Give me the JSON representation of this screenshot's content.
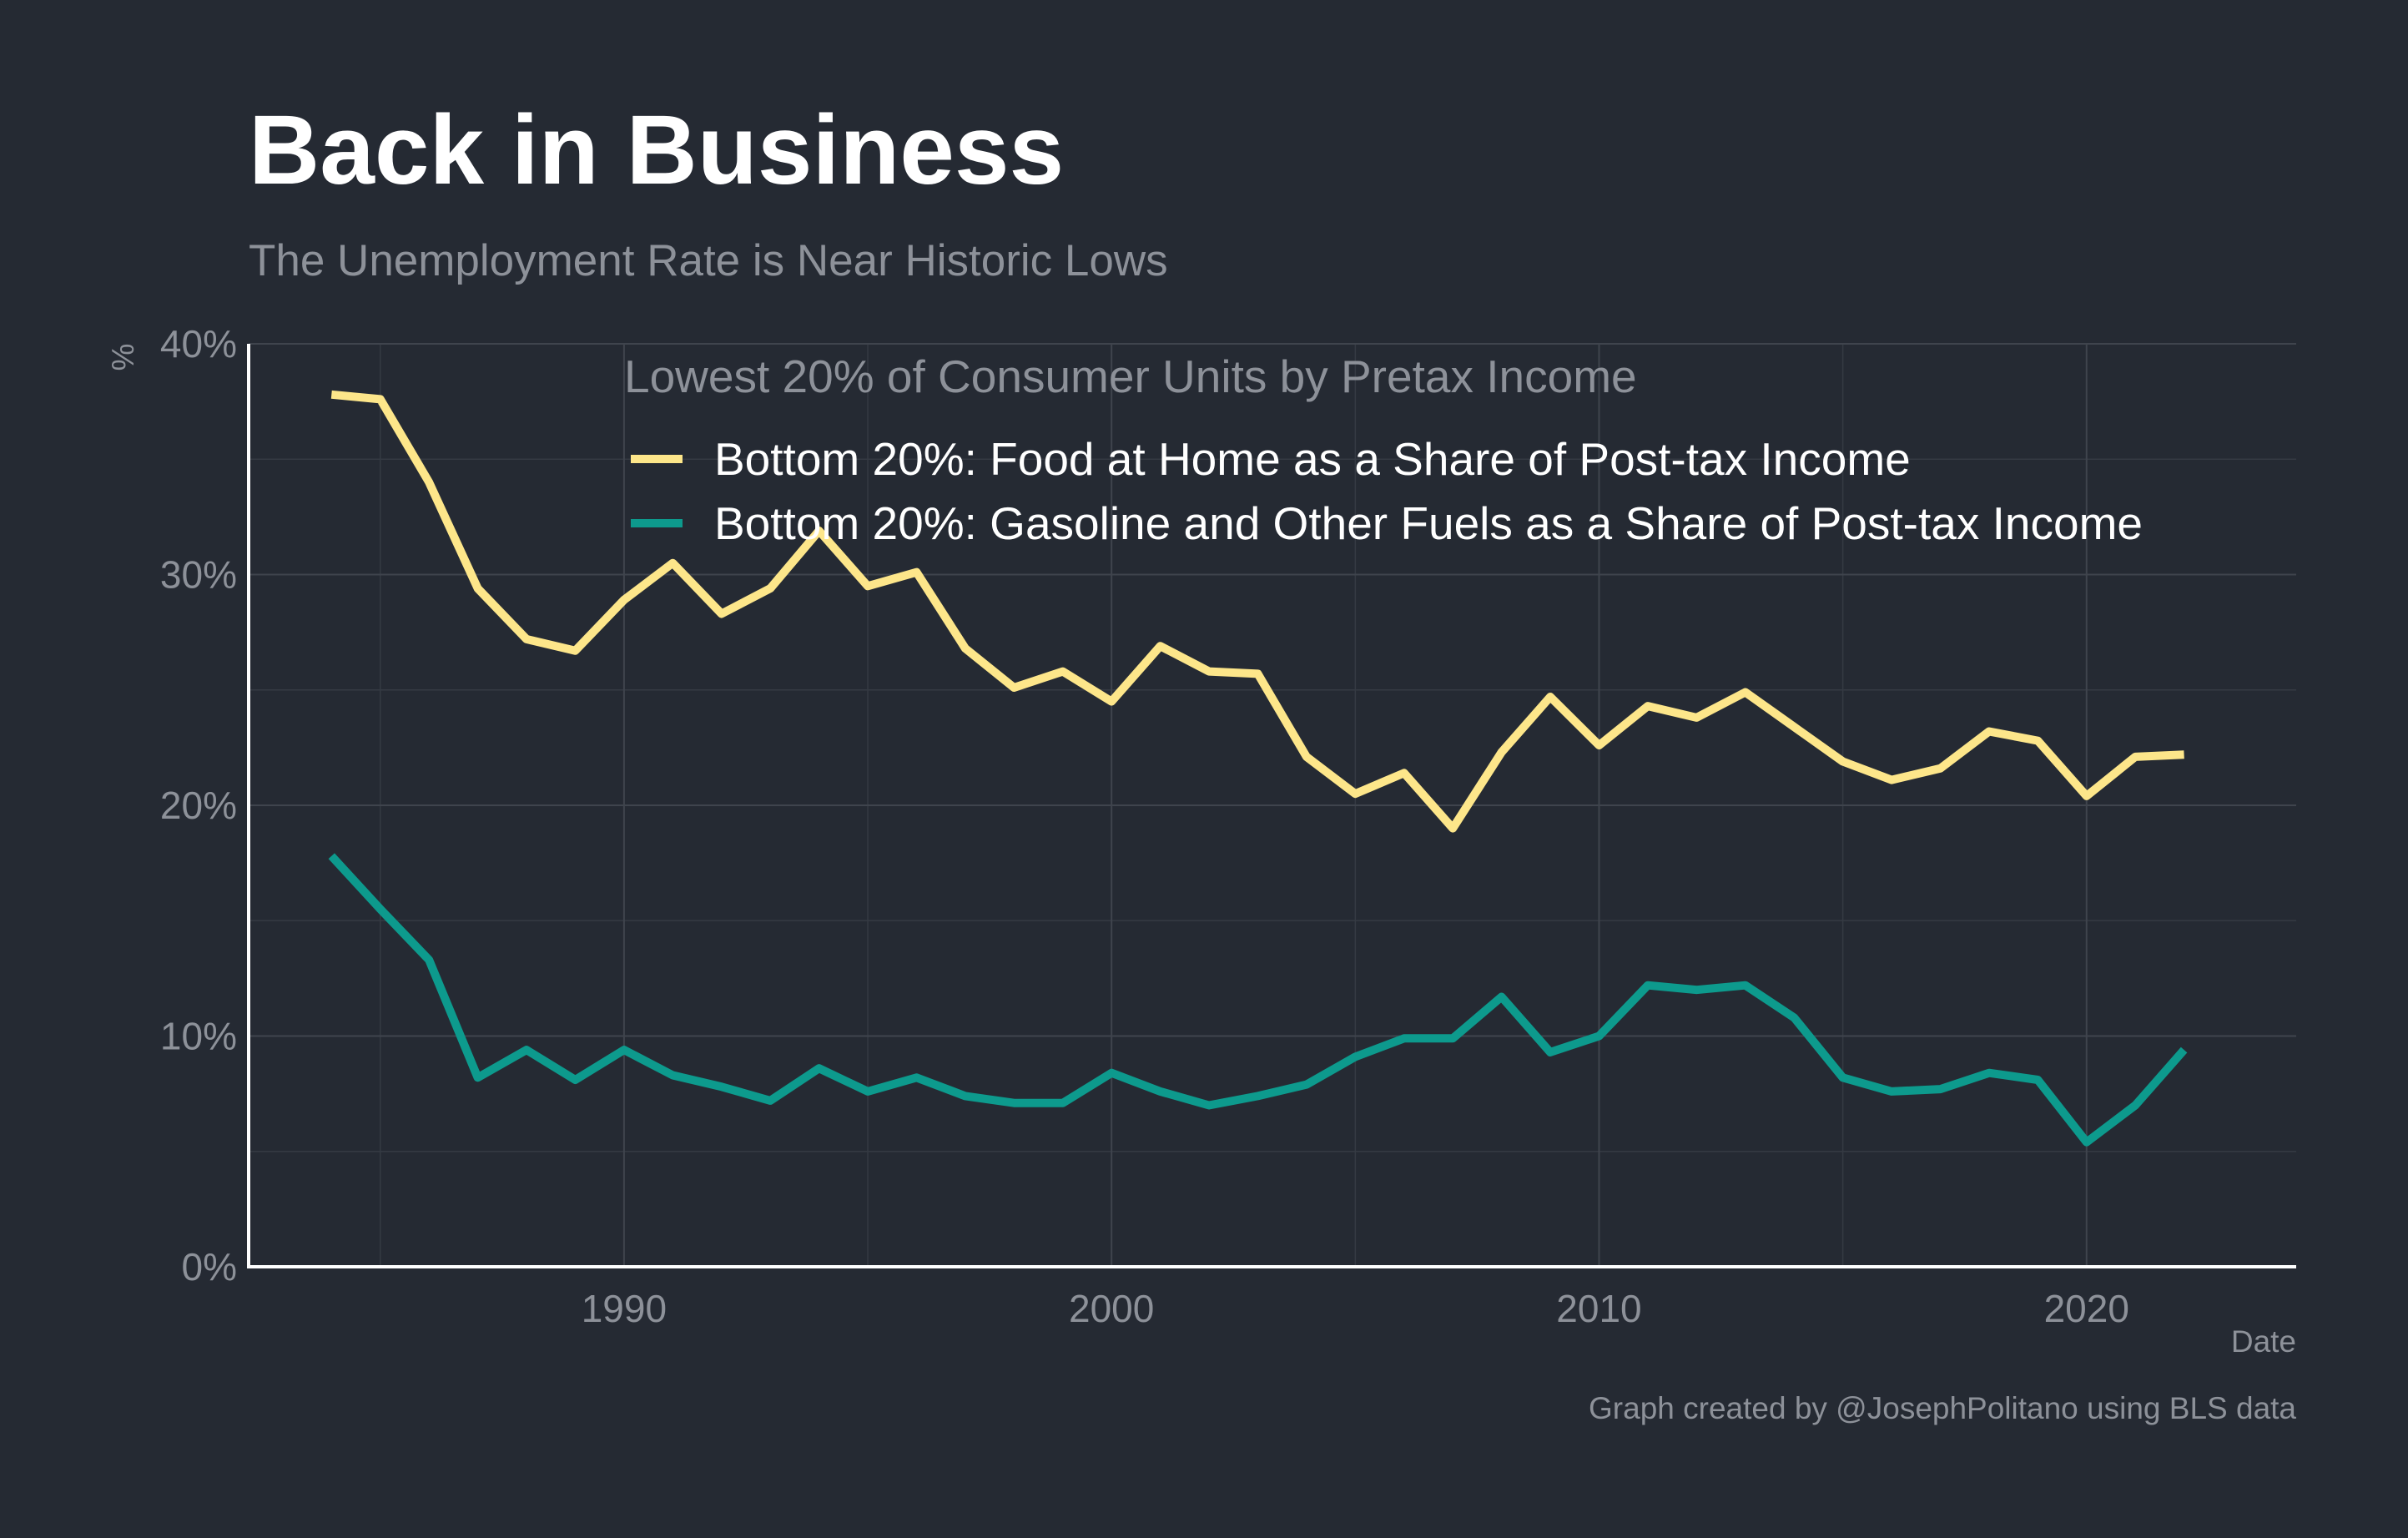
{
  "title": "Back in Business",
  "subtitle": "The Unemployment Rate is Near Historic Lows",
  "caption": "Graph created by @JosephPolitano using BLS data",
  "chart_data": {
    "type": "line",
    "title": "Back in Business",
    "subtitle": "The Unemployment Rate is Near Historic Lows",
    "xlabel": "Date",
    "ylabel": "%",
    "xlim": [
      1982.3,
      2024.3
    ],
    "ylim": [
      0,
      40
    ],
    "x_ticks": [
      1990,
      2000,
      2010,
      2020
    ],
    "x_tick_labels": [
      "1990",
      "2000",
      "2010",
      "2020"
    ],
    "y_ticks": [
      0,
      10,
      20,
      30,
      40
    ],
    "y_tick_labels": [
      "0%",
      "10%",
      "20%",
      "30%",
      "40%"
    ],
    "grid": true,
    "legend_title": "Lowest 20% of Consumer Units by Pretax Income",
    "legend_position": "top-right",
    "x": [
      1984,
      1985,
      1986,
      1987,
      1988,
      1989,
      1990,
      1991,
      1992,
      1993,
      1994,
      1995,
      1996,
      1997,
      1998,
      1999,
      2000,
      2001,
      2002,
      2003,
      2004,
      2005,
      2006,
      2007,
      2008,
      2009,
      2010,
      2011,
      2012,
      2013,
      2014,
      2015,
      2016,
      2017,
      2018,
      2019,
      2020,
      2021,
      2022
    ],
    "series": [
      {
        "name": "Bottom 20%: Food at Home as a Share of Post-tax Income",
        "color": "#fde68a",
        "values": [
          37.8,
          37.6,
          34.0,
          29.4,
          27.2,
          26.7,
          28.9,
          30.5,
          28.3,
          29.4,
          31.9,
          29.5,
          30.1,
          26.8,
          25.1,
          25.8,
          24.5,
          26.9,
          25.8,
          25.7,
          22.1,
          20.5,
          21.4,
          19.0,
          22.3,
          24.7,
          22.6,
          24.3,
          23.8,
          24.9,
          23.4,
          21.9,
          21.1,
          21.6,
          23.2,
          22.8,
          20.4,
          22.1,
          22.2
        ]
      },
      {
        "name": "Bottom 20%: Gasoline and Other Fuels as a Share of Post-tax Income",
        "color": "#0d9a8d",
        "values": [
          17.8,
          15.5,
          13.3,
          8.2,
          9.4,
          8.1,
          9.4,
          8.3,
          7.8,
          7.2,
          8.6,
          7.6,
          8.2,
          7.4,
          7.1,
          7.1,
          8.4,
          7.6,
          7.0,
          7.4,
          7.9,
          9.1,
          9.9,
          9.9,
          11.7,
          9.3,
          10.0,
          12.2,
          12.0,
          12.2,
          10.8,
          8.2,
          7.6,
          7.7,
          8.4,
          8.1,
          5.4,
          7.0,
          9.4
        ]
      }
    ]
  }
}
